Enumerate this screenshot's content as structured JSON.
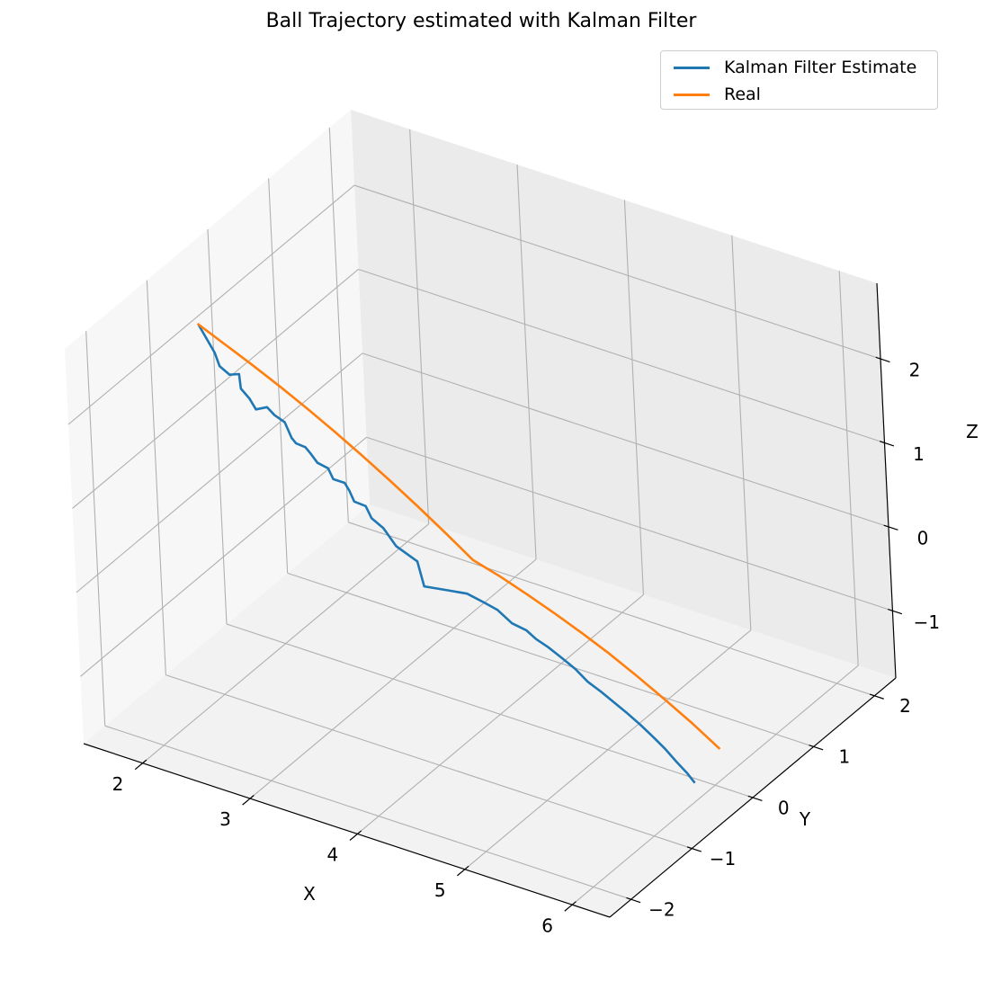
{
  "chart_data": {
    "type": "line3d",
    "title": "Ball Trajectory estimated with Kalman Filter",
    "xlabel": "X",
    "ylabel": "Y",
    "zlabel": "Z",
    "xlim": [
      1.45,
      6.35
    ],
    "ylim": [
      -2.35,
      2.35
    ],
    "zlim": [
      -1.8,
      2.9
    ],
    "xticks": [
      2,
      3,
      4,
      5,
      6
    ],
    "yticks": [
      -2,
      -1,
      0,
      1,
      2
    ],
    "zticks": [
      -1,
      0,
      1,
      2
    ],
    "xtick_labels": [
      "2",
      "3",
      "4",
      "5",
      "6"
    ],
    "ytick_labels": [
      "−2",
      "−1",
      "0",
      "1",
      "2"
    ],
    "ztick_labels": [
      "−1",
      "0",
      "1",
      "2"
    ],
    "grid": true,
    "legend_position": "top-right",
    "series": [
      {
        "name": "Kalman Filter Estimate",
        "color": "#1f77b4",
        "x": [
          1.56,
          1.73,
          1.8,
          1.92,
          1.95,
          2.05,
          2.14,
          2.22,
          2.29,
          2.37,
          2.45,
          2.58,
          2.62,
          2.67,
          2.74,
          2.82,
          2.9,
          2.98,
          3.05,
          3.12,
          3.18,
          3.25,
          3.33,
          3.42,
          3.55,
          3.66,
          3.78,
          3.9,
          4.02,
          4.18,
          4.32,
          4.48,
          4.62,
          4.72,
          4.83,
          4.97,
          5.1,
          5.23,
          5.36,
          5.49,
          5.62,
          5.75,
          5.88,
          6.0,
          6.11,
          6.22,
          6.3
        ],
        "y": [
          -0.4,
          -0.45,
          -0.5,
          -0.55,
          -0.45,
          -0.6,
          -0.62,
          -0.66,
          -0.6,
          -0.62,
          -0.6,
          -0.72,
          -0.72,
          -0.66,
          -0.7,
          -0.73,
          -0.7,
          -0.76,
          -0.7,
          -0.75,
          -0.78,
          -0.72,
          -0.77,
          -0.74,
          -0.77,
          -0.63,
          -0.74,
          -0.53,
          -0.47,
          -0.48,
          -0.5,
          -0.55,
          -0.56,
          -0.58,
          -0.58,
          -0.6,
          -0.62,
          -0.65,
          -0.66,
          -0.68,
          -0.7,
          -0.72,
          -0.74,
          -0.76,
          -0.78,
          -0.8,
          -0.82
        ],
        "z": [
          2.05,
          1.82,
          1.72,
          1.7,
          1.66,
          1.62,
          1.55,
          1.48,
          1.5,
          1.45,
          1.39,
          1.33,
          1.28,
          1.22,
          1.2,
          1.14,
          1.09,
          1.03,
          0.98,
          0.95,
          0.86,
          0.8,
          0.72,
          0.62,
          0.48,
          0.26,
          0.08,
          -0.05,
          -0.07,
          -0.1,
          -0.12,
          -0.18,
          -0.2,
          -0.25,
          -0.3,
          -0.36,
          -0.42,
          -0.5,
          -0.56,
          -0.62,
          -0.68,
          -0.75,
          -0.83,
          -0.91,
          -1.0,
          -1.08,
          -1.15
        ]
      },
      {
        "name": "Real",
        "color": "#ff7f0e",
        "x": [
          1.55,
          1.8,
          2.05,
          2.3,
          2.55,
          2.8,
          3.05,
          3.3,
          3.55,
          3.8,
          4.05,
          4.3,
          4.55,
          4.8,
          5.05,
          5.3,
          5.55,
          5.8,
          6.05,
          6.3
        ],
        "y": [
          -0.4,
          -0.4,
          -0.4,
          -0.4,
          -0.4,
          -0.4,
          -0.4,
          -0.4,
          -0.4,
          -0.4,
          -0.4,
          -0.4,
          -0.4,
          -0.4,
          -0.4,
          -0.4,
          -0.4,
          -0.4,
          -0.4,
          -0.4
        ],
        "z": [
          2.06,
          1.92,
          1.78,
          1.63,
          1.47,
          1.3,
          1.12,
          0.93,
          0.73,
          0.52,
          0.3,
          0.21,
          0.1,
          -0.02,
          -0.15,
          -0.29,
          -0.45,
          -0.62,
          -0.8,
          -1.0
        ]
      }
    ]
  }
}
